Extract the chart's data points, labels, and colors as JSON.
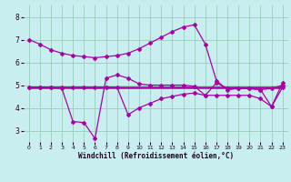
{
  "xlabel": "Windchill (Refroidissement éolien,°C)",
  "background_color": "#c8eef0",
  "grid_color": "#99ccbb",
  "line_color": "#aa00aa",
  "xlim": [
    -0.5,
    23.5
  ],
  "ylim": [
    2.5,
    8.5
  ],
  "yticks": [
    3,
    4,
    5,
    6,
    7,
    8
  ],
  "xticks": [
    0,
    1,
    2,
    3,
    4,
    5,
    6,
    7,
    8,
    9,
    10,
    11,
    12,
    13,
    14,
    15,
    16,
    17,
    18,
    19,
    20,
    21,
    22,
    23
  ],
  "line1_x": [
    0,
    1,
    2,
    3,
    4,
    5,
    6,
    7,
    8,
    9,
    10,
    11,
    12,
    13,
    14,
    15,
    16,
    17,
    18,
    19,
    20,
    21,
    22,
    23
  ],
  "line1_y": [
    7.0,
    6.8,
    6.55,
    6.4,
    6.3,
    6.25,
    6.2,
    6.25,
    6.3,
    6.4,
    6.6,
    6.85,
    7.1,
    7.35,
    7.55,
    7.65,
    6.8,
    5.2,
    4.8,
    4.85,
    4.85,
    4.8,
    4.85,
    5.0
  ],
  "line2_x": [
    0,
    1,
    2,
    3,
    4,
    5,
    6,
    7,
    8,
    9,
    10,
    11,
    12,
    13,
    14,
    15,
    16,
    17,
    18,
    19,
    20,
    21,
    22,
    23
  ],
  "line2_y": [
    4.9,
    4.9,
    4.9,
    4.85,
    3.4,
    3.35,
    2.65,
    5.3,
    5.45,
    5.3,
    5.05,
    5.0,
    5.0,
    5.0,
    5.0,
    4.95,
    4.55,
    5.1,
    4.85,
    4.85,
    4.85,
    4.8,
    4.05,
    5.1
  ],
  "line3_x": [
    0,
    1,
    2,
    3,
    4,
    5,
    6,
    7,
    8,
    9,
    10,
    11,
    12,
    13,
    14,
    15,
    16,
    17,
    18,
    19,
    20,
    21,
    22,
    23
  ],
  "line3_y": [
    4.9,
    4.9,
    4.9,
    4.9,
    4.9,
    4.9,
    4.9,
    4.9,
    4.9,
    3.7,
    4.0,
    4.2,
    4.4,
    4.5,
    4.6,
    4.65,
    4.55,
    4.55,
    4.55,
    4.55,
    4.55,
    4.4,
    4.05,
    4.9
  ],
  "line4_x": [
    0,
    1,
    2,
    3,
    4,
    5,
    6,
    7,
    8,
    9,
    10,
    11,
    12,
    13,
    14,
    15,
    16,
    17,
    18,
    19,
    20,
    21,
    22,
    23
  ],
  "line4_y": [
    4.9,
    4.9,
    4.9,
    4.9,
    4.9,
    4.9,
    4.9,
    4.9,
    4.9,
    4.9,
    4.9,
    4.9,
    4.9,
    4.9,
    4.9,
    4.9,
    4.9,
    4.9,
    4.9,
    4.9,
    4.9,
    4.9,
    4.9,
    4.9
  ]
}
